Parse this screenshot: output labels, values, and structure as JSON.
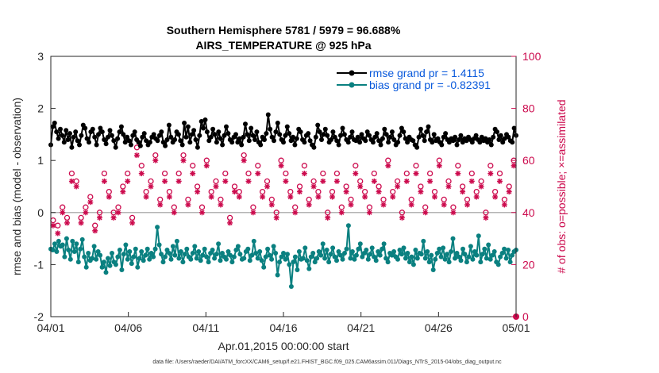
{
  "chart_data": {
    "type": "line",
    "title": "Southern Hemisphere 5781 / 5979 = 96.688%",
    "subtitle": "AIRS_TEMPERATURE @ 925 hPa",
    "xlabel": "Apr.01,2015 00:00:00 start",
    "ylabel": "rmse and bias (model - observation)",
    "ylabel_right": "# of obs: o=possible; ×=assimilated",
    "x_ticks": [
      "04/01",
      "04/06",
      "04/11",
      "04/16",
      "04/21",
      "04/26",
      "05/01"
    ],
    "x_range_days": [
      0,
      30
    ],
    "ylim": [
      -2,
      3
    ],
    "y_ticks": [
      "-2",
      "-1",
      "0",
      "1",
      "2",
      "3"
    ],
    "ylim_right": [
      0,
      100
    ],
    "y_ticks_right": [
      "0",
      "20",
      "40",
      "60",
      "80",
      "100"
    ],
    "colors": {
      "rmse": "#000000",
      "bias": "#0a8080",
      "obs": "#cc0a4d",
      "zero_line": "#b3b3b3",
      "legend_text": "#0a5adc"
    },
    "series": [
      {
        "name": "rmse grand pr = 1.4115",
        "axis": "left",
        "values": [
          1.3,
          1.65,
          1.72,
          1.55,
          1.42,
          1.6,
          1.48,
          1.35,
          1.58,
          1.4,
          1.52,
          1.25,
          1.45,
          1.55,
          1.38,
          1.3,
          1.48,
          1.68,
          1.62,
          1.42,
          1.35,
          1.55,
          1.6,
          1.45,
          1.3,
          1.5,
          1.62,
          1.55,
          1.4,
          1.32,
          1.45,
          1.58,
          1.48,
          1.38,
          1.25,
          1.42,
          1.55,
          1.65,
          1.5,
          1.35,
          1.45,
          1.38,
          1.3,
          1.48,
          1.55,
          1.4,
          1.35,
          1.28,
          1.45,
          1.52,
          1.38,
          1.3,
          1.35,
          1.45,
          1.5,
          1.42,
          1.38,
          1.48,
          1.55,
          1.35,
          1.28,
          1.4,
          1.68,
          1.45,
          1.35,
          1.4,
          1.55,
          1.5,
          1.38,
          1.3,
          1.72,
          1.45,
          1.65,
          1.35,
          1.5,
          1.58,
          1.4,
          1.25,
          1.48,
          1.75,
          1.62,
          1.78,
          1.55,
          1.38,
          1.45,
          1.6,
          1.5,
          1.35,
          1.55,
          1.42,
          1.3,
          1.48,
          1.65,
          1.52,
          1.4,
          1.35,
          1.45,
          1.5,
          1.35,
          1.42,
          1.3,
          1.45,
          1.7,
          1.5,
          1.38,
          1.62,
          1.48,
          1.4,
          1.55,
          1.35,
          1.3,
          1.45,
          1.4,
          1.52,
          1.88,
          1.6,
          1.45,
          1.38,
          1.55,
          1.72,
          1.5,
          1.4,
          1.35,
          1.48,
          1.65,
          1.52,
          1.38,
          1.45,
          1.3,
          1.42,
          1.6,
          1.55,
          1.4,
          1.35,
          1.48,
          1.52,
          1.38,
          1.3,
          1.25,
          1.45,
          1.68,
          1.55,
          1.4,
          1.5,
          1.6,
          1.48,
          1.35,
          1.4,
          1.55,
          1.45,
          1.38,
          1.3,
          1.48,
          1.62,
          1.5,
          1.4,
          1.35,
          1.45,
          1.55,
          1.4,
          1.38,
          1.45,
          1.35,
          1.5,
          1.42,
          1.38,
          1.55,
          1.48,
          1.4,
          1.35,
          1.45,
          1.52,
          1.38,
          1.3,
          1.42,
          1.6,
          1.5,
          1.35,
          1.45,
          1.55,
          1.4,
          1.3,
          1.35,
          1.48,
          1.62,
          1.55,
          1.42,
          1.35,
          1.45,
          1.4,
          1.38,
          1.3,
          1.25,
          1.45,
          1.6,
          1.48,
          1.38,
          1.55,
          1.65,
          1.4,
          1.35,
          1.5,
          1.38,
          1.42,
          1.35,
          1.3,
          1.45,
          1.52,
          1.4,
          1.35,
          1.42,
          1.38,
          1.45,
          1.3,
          1.4,
          1.48,
          1.35,
          1.42,
          1.38,
          1.45,
          1.4,
          1.35,
          1.42,
          1.48,
          1.4,
          1.35,
          1.45,
          1.38,
          1.42,
          1.35,
          1.4,
          1.3,
          1.45,
          1.6,
          1.55,
          1.4,
          1.48,
          1.35,
          1.42,
          1.5,
          1.45,
          1.38,
          1.35,
          1.62,
          1.48
        ]
      },
      {
        "name": "bias grand pr = -0.82391",
        "axis": "left",
        "values": [
          -0.7,
          -0.72,
          -0.6,
          -0.75,
          -0.55,
          -0.65,
          -0.62,
          -0.85,
          -0.5,
          -0.72,
          -0.9,
          -0.55,
          -0.75,
          -0.6,
          -0.95,
          -0.7,
          -0.52,
          -0.85,
          -1.05,
          -0.78,
          -0.92,
          -0.88,
          -0.65,
          -0.9,
          -0.75,
          -0.82,
          -1.05,
          -0.95,
          -1.15,
          -0.88,
          -1.02,
          -0.78,
          -0.95,
          -1.0,
          -0.85,
          -0.72,
          -1.1,
          -0.8,
          -0.62,
          -0.9,
          -0.75,
          -0.98,
          -0.85,
          -0.7,
          -1.05,
          -0.88,
          -0.75,
          -0.92,
          -0.82,
          -0.7,
          -0.9,
          -0.78,
          -0.85,
          -0.7,
          -0.28,
          -0.62,
          -0.8,
          -0.95,
          -0.85,
          -0.72,
          -0.78,
          -0.9,
          -0.65,
          -0.82,
          -0.55,
          -0.88,
          -0.75,
          -0.95,
          -0.8,
          -0.7,
          -0.85,
          -0.9,
          -0.78,
          -0.65,
          -0.88,
          -0.75,
          -0.92,
          -0.82,
          -0.7,
          -0.85,
          -0.95,
          -0.78,
          -0.72,
          -0.88,
          -0.8,
          -0.6,
          -0.92,
          -0.78,
          -0.85,
          -0.9,
          -0.75,
          -0.82,
          -0.95,
          -0.85,
          -0.72,
          -0.65,
          -0.8,
          -0.9,
          -0.88,
          -0.75,
          -0.7,
          -0.92,
          -0.82,
          -0.55,
          -0.78,
          -0.88,
          -0.75,
          -0.92,
          -1.05,
          -0.85,
          -0.7,
          -0.82,
          -0.9,
          -0.65,
          -0.78,
          -1.2,
          -0.95,
          -0.85,
          -0.78,
          -0.9,
          -0.8,
          -1.0,
          -1.42,
          -0.95,
          -0.85,
          -1.1,
          -0.75,
          -0.9,
          -0.88,
          -0.68,
          -0.92,
          -1.08,
          -0.85,
          -0.78,
          -0.95,
          -0.88,
          -0.75,
          -0.82,
          -0.6,
          -0.88,
          -0.72,
          -0.95,
          -0.8,
          -0.68,
          -0.85,
          -0.92,
          -0.75,
          -0.82,
          -0.9,
          -0.78,
          -0.7,
          -0.25,
          -0.88,
          -0.75,
          -0.9,
          -0.82,
          -0.7,
          -0.6,
          -0.85,
          -0.78,
          -0.72,
          -0.9,
          -0.8,
          -0.68,
          -0.85,
          -0.92,
          -0.75,
          -0.82,
          -0.7,
          -0.6,
          -0.88,
          -0.95,
          -0.78,
          -0.82,
          -0.75,
          -0.85,
          -0.9,
          -0.72,
          -0.8,
          -0.68,
          -0.88,
          -0.78,
          -0.95,
          -0.85,
          -1.0,
          -0.72,
          -0.88,
          -0.78,
          -0.8,
          -0.55,
          -0.88,
          -0.75,
          -0.95,
          -0.82,
          -1.1,
          -0.9,
          -0.78,
          -0.7,
          -0.85,
          -0.68,
          -0.9,
          -0.8,
          -0.95,
          -0.75,
          -0.5,
          -0.88,
          -0.78,
          -0.85,
          -0.92,
          -0.7,
          -0.8,
          -0.95,
          -0.85,
          -0.65,
          -0.9,
          -0.75,
          -0.82,
          -0.45,
          -0.95,
          -0.8,
          -0.7,
          -0.88,
          -0.62,
          -0.9,
          -0.82,
          -0.75,
          -0.95,
          -1.0,
          -0.85,
          -0.78,
          -0.7,
          -0.88,
          -0.72,
          -0.95,
          -0.82,
          -0.75,
          -0.72
        ]
      }
    ],
    "obs_possible": [
      37,
      35,
      42,
      38,
      55,
      52,
      38,
      42,
      46,
      35,
      40,
      55,
      48,
      40,
      42,
      50,
      55,
      38,
      65,
      58,
      48,
      52,
      62,
      45,
      55,
      48,
      42,
      55,
      62,
      45,
      58,
      50,
      42,
      60,
      48,
      52,
      45,
      55,
      38,
      50,
      48,
      62,
      55,
      42,
      58,
      48,
      52,
      45,
      40,
      60,
      55,
      48,
      42,
      50,
      58,
      45,
      52,
      48,
      55,
      40,
      48,
      55,
      42,
      50,
      45,
      58,
      52,
      48,
      42,
      55,
      50,
      45,
      60,
      48,
      52,
      40,
      55,
      45,
      58,
      50,
      42,
      55,
      48,
      60,
      45,
      52,
      42,
      58,
      50,
      45,
      55,
      48,
      52,
      40,
      58,
      48,
      55,
      45,
      50,
      60
    ],
    "obs_assimilated": [
      35,
      32,
      40,
      36,
      52,
      50,
      36,
      40,
      44,
      33,
      38,
      52,
      46,
      38,
      40,
      48,
      52,
      36,
      62,
      55,
      46,
      50,
      60,
      43,
      52,
      46,
      40,
      52,
      60,
      43,
      55,
      48,
      40,
      58,
      46,
      50,
      43,
      52,
      36,
      48,
      46,
      60,
      52,
      40,
      55,
      46,
      50,
      43,
      38,
      58,
      52,
      46,
      40,
      48,
      55,
      43,
      50,
      46,
      52,
      38,
      46,
      52,
      40,
      48,
      43,
      55,
      50,
      46,
      40,
      52,
      48,
      43,
      58,
      46,
      50,
      38,
      52,
      43,
      55,
      48,
      40,
      52,
      46,
      58,
      43,
      50,
      40,
      55,
      48,
      43,
      52,
      46,
      50,
      38,
      55,
      46,
      52,
      43,
      48,
      58
    ],
    "footer": "data file: /Users/raeder/DAI/ATM_forcXX/CAM6_setup/f.e21.FHIST_BGC.f09_025.CAM6assim.011/Diags_NTrS_2015-04/obs_diag_output.nc"
  }
}
